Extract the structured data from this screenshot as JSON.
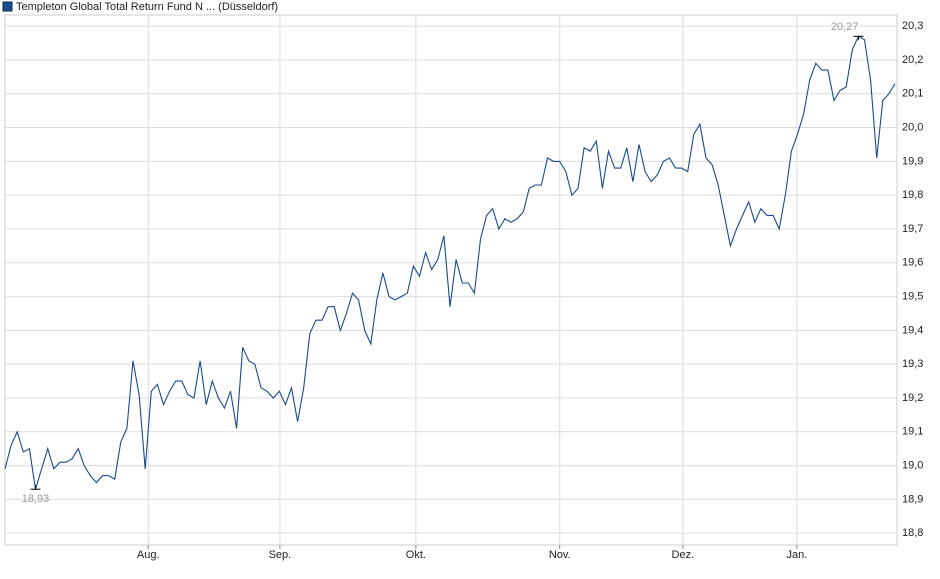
{
  "chart_data": {
    "type": "line",
    "series": [
      {
        "name": "Templeton Global Total Return Fund N ... (Düsseldorf)",
        "color": "#1a4a8c",
        "values": [
          18.99,
          19.06,
          19.1,
          19.04,
          19.05,
          18.93,
          18.99,
          19.05,
          18.99,
          19.01,
          19.01,
          19.02,
          19.05,
          19.0,
          18.97,
          18.95,
          18.97,
          18.97,
          18.96,
          19.07,
          19.11,
          19.31,
          19.21,
          18.99,
          19.22,
          19.24,
          19.18,
          19.22,
          19.25,
          19.25,
          19.21,
          19.2,
          19.31,
          19.18,
          19.25,
          19.2,
          19.17,
          19.22,
          19.11,
          19.35,
          19.31,
          19.3,
          19.23,
          19.22,
          19.2,
          19.22,
          19.18,
          19.23,
          19.13,
          19.23,
          19.39,
          19.43,
          19.43,
          19.47,
          19.47,
          19.4,
          19.45,
          19.51,
          19.49,
          19.4,
          19.36,
          19.49,
          19.57,
          19.5,
          19.49,
          19.5,
          19.51,
          19.59,
          19.56,
          19.63,
          19.58,
          19.61,
          19.68,
          19.47,
          19.61,
          19.54,
          19.54,
          19.51,
          19.67,
          19.74,
          19.76,
          19.7,
          19.73,
          19.72,
          19.73,
          19.75,
          19.82,
          19.83,
          19.83,
          19.91,
          19.9,
          19.9,
          19.87,
          19.8,
          19.82,
          19.94,
          19.93,
          19.96,
          19.82,
          19.93,
          19.88,
          19.88,
          19.94,
          19.84,
          19.95,
          19.87,
          19.84,
          19.86,
          19.9,
          19.91,
          19.88,
          19.88,
          19.87,
          19.98,
          20.01,
          19.91,
          19.89,
          19.83,
          19.74,
          19.65,
          19.7,
          19.74,
          19.78,
          19.72,
          19.76,
          19.74,
          19.74,
          19.7,
          19.8,
          19.93,
          19.98,
          20.04,
          20.14,
          20.19,
          20.17,
          20.17,
          20.08,
          20.11,
          20.12,
          20.23,
          20.27,
          20.26,
          20.14,
          19.91,
          20.08,
          20.1,
          20.13
        ]
      }
    ],
    "xlim": [
      0,
      146
    ],
    "xticks": [
      {
        "value": 23.5,
        "label": "Aug."
      },
      {
        "value": 45.1,
        "label": "Sep."
      },
      {
        "value": 67.4,
        "label": "Okt."
      },
      {
        "value": 91.0,
        "label": "Nov."
      },
      {
        "value": 111.2,
        "label": "Dez."
      },
      {
        "value": 129.9,
        "label": "Jan."
      }
    ],
    "ylim": [
      18.765,
      20.333
    ],
    "yticks": [
      {
        "value": 18.8,
        "label": "18,8"
      },
      {
        "value": 18.9,
        "label": "18,9"
      },
      {
        "value": 19.0,
        "label": "19,0"
      },
      {
        "value": 19.1,
        "label": "19,1"
      },
      {
        "value": 19.2,
        "label": "19,2"
      },
      {
        "value": 19.3,
        "label": "19,3"
      },
      {
        "value": 19.4,
        "label": "19,4"
      },
      {
        "value": 19.5,
        "label": "19,5"
      },
      {
        "value": 19.6,
        "label": "19,6"
      },
      {
        "value": 19.7,
        "label": "19,7"
      },
      {
        "value": 19.8,
        "label": "19,8"
      },
      {
        "value": 19.9,
        "label": "19,9"
      },
      {
        "value": 20.0,
        "label": "20,0"
      },
      {
        "value": 20.1,
        "label": "20,1"
      },
      {
        "value": 20.2,
        "label": "20,2"
      },
      {
        "value": 20.3,
        "label": "20,3"
      }
    ],
    "annotations": [
      {
        "text": "20,27",
        "x": 140,
        "y": 20.27
      },
      {
        "text": "18,93",
        "x": 5,
        "y": 18.93
      }
    ],
    "grid": true
  }
}
